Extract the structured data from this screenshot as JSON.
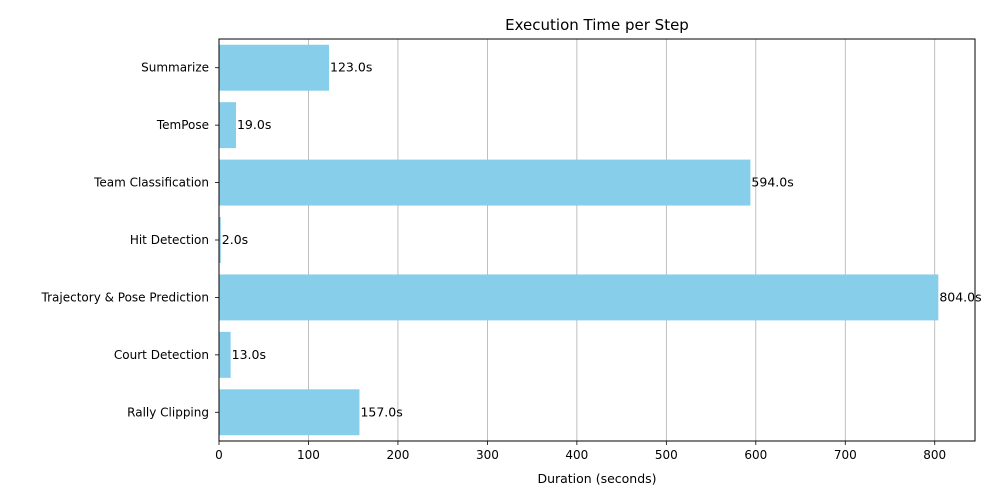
{
  "chart_data": {
    "type": "bar",
    "orientation": "horizontal",
    "title": "Execution Time per Step",
    "xlabel": "Duration (seconds)",
    "ylabel": "",
    "xlim": [
      0,
      845
    ],
    "x_ticks": [
      0,
      100,
      200,
      300,
      400,
      500,
      600,
      700,
      800
    ],
    "grid": "x",
    "bar_color": "#87CEEB",
    "categories": [
      "Rally Clipping",
      "Court Detection",
      "Trajectory & Pose Prediction",
      "Hit Detection",
      "Team Classification",
      "TemPose",
      "Summarize"
    ],
    "values": [
      157,
      13,
      804,
      2,
      594,
      19,
      123
    ],
    "value_labels": [
      "157.0s",
      "13.0s",
      "804.0s",
      "2.0s",
      "594.0s",
      "19.0s",
      "123.0s"
    ]
  }
}
